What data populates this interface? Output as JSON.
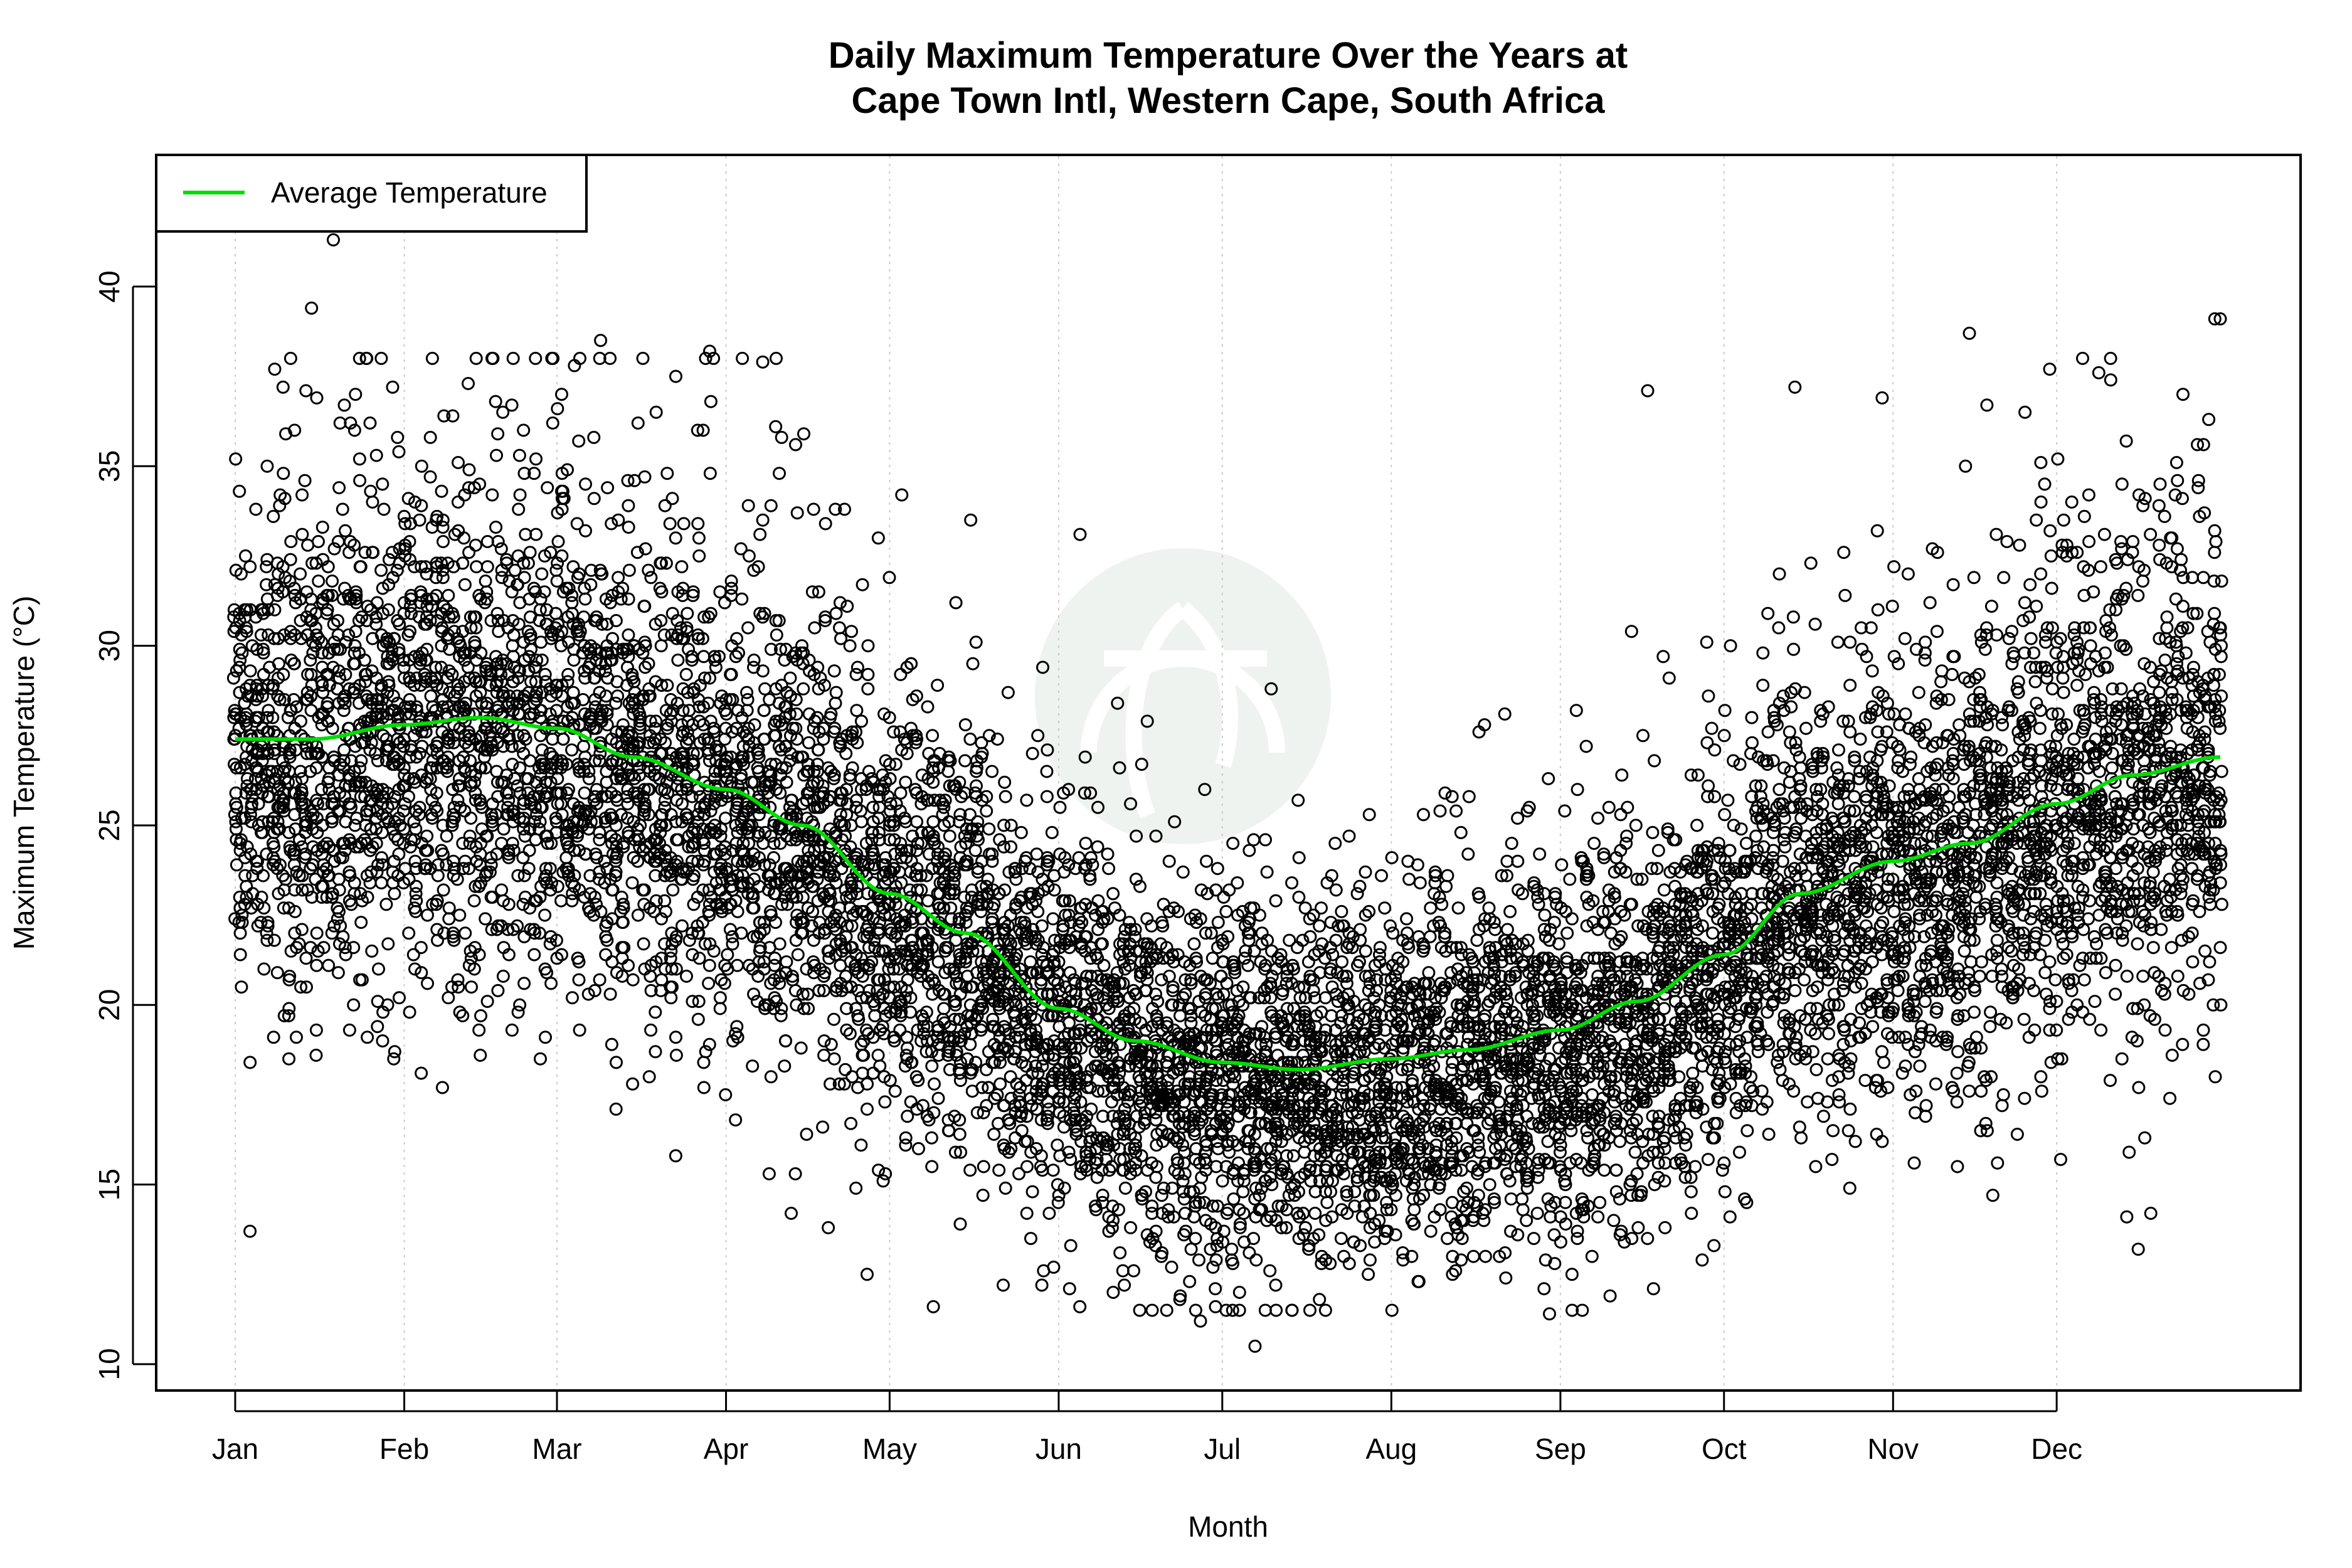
{
  "chart_data": {
    "type": "scatter",
    "title": [
      "Daily Maximum Temperature Over the Years at",
      "Cape Town Intl, Western Cape, South Africa"
    ],
    "xlabel": "Month",
    "ylabel": "Maximum Temperature (°C)",
    "xlim": [
      1,
      365
    ],
    "ylim": [
      10.5,
      41.3
    ],
    "x_ticks": [
      {
        "label": "Jan",
        "day": 1
      },
      {
        "label": "Feb",
        "day": 32
      },
      {
        "label": "Mar",
        "day": 60
      },
      {
        "label": "Apr",
        "day": 91
      },
      {
        "label": "May",
        "day": 121
      },
      {
        "label": "Jun",
        "day": 152
      },
      {
        "label": "Jul",
        "day": 182
      },
      {
        "label": "Aug",
        "day": 213
      },
      {
        "label": "Sep",
        "day": 244
      },
      {
        "label": "Oct",
        "day": 274
      },
      {
        "label": "Nov",
        "day": 305
      },
      {
        "label": "Dec",
        "day": 335
      }
    ],
    "y_ticks": [
      10,
      15,
      20,
      25,
      30,
      35,
      40
    ],
    "grid": "vertical dotted at month ticks",
    "legend": {
      "position": "top-left",
      "entries": [
        {
          "label": "Average Temperature",
          "color": "#00dd00"
        }
      ]
    },
    "colors": {
      "points": "#000000",
      "average_line": "#00dd00",
      "watermark": "#eef3ef"
    },
    "average_series": {
      "name": "Average Temperature",
      "x": [
        1,
        15,
        32,
        46,
        60,
        74,
        91,
        105,
        121,
        135,
        152,
        166,
        182,
        196,
        213,
        227,
        244,
        258,
        274,
        288,
        305,
        319,
        335,
        349,
        365
      ],
      "y": [
        27.4,
        27.4,
        27.8,
        28.0,
        27.7,
        26.9,
        26.0,
        25.0,
        23.1,
        22.0,
        19.9,
        19.0,
        18.4,
        18.2,
        18.5,
        18.75,
        19.3,
        20.1,
        21.4,
        23.1,
        24.0,
        24.5,
        25.6,
        26.4,
        26.9
      ]
    },
    "points_notable": [
      {
        "day": 19,
        "temp": 41.3
      },
      {
        "day": 15,
        "temp": 39.4
      },
      {
        "day": 364,
        "temp": 39.1
      },
      {
        "day": 365,
        "temp": 39.1
      },
      {
        "day": 319,
        "temp": 38.7
      },
      {
        "day": 68,
        "temp": 38.5
      },
      {
        "day": 88,
        "temp": 38.2
      },
      {
        "day": 94,
        "temp": 38.0
      },
      {
        "day": 39,
        "temp": 17.7
      },
      {
        "day": 188,
        "temp": 10.5
      },
      {
        "day": 178,
        "temp": 11.2
      },
      {
        "day": 242,
        "temp": 11.4
      },
      {
        "day": 287,
        "temp": 37.2
      },
      {
        "day": 260,
        "temp": 37.1
      },
      {
        "day": 303,
        "temp": 36.9
      },
      {
        "day": 10,
        "temp": 19.7
      },
      {
        "day": 162,
        "temp": 12.0
      },
      {
        "day": 154,
        "temp": 12.1
      }
    ]
  }
}
